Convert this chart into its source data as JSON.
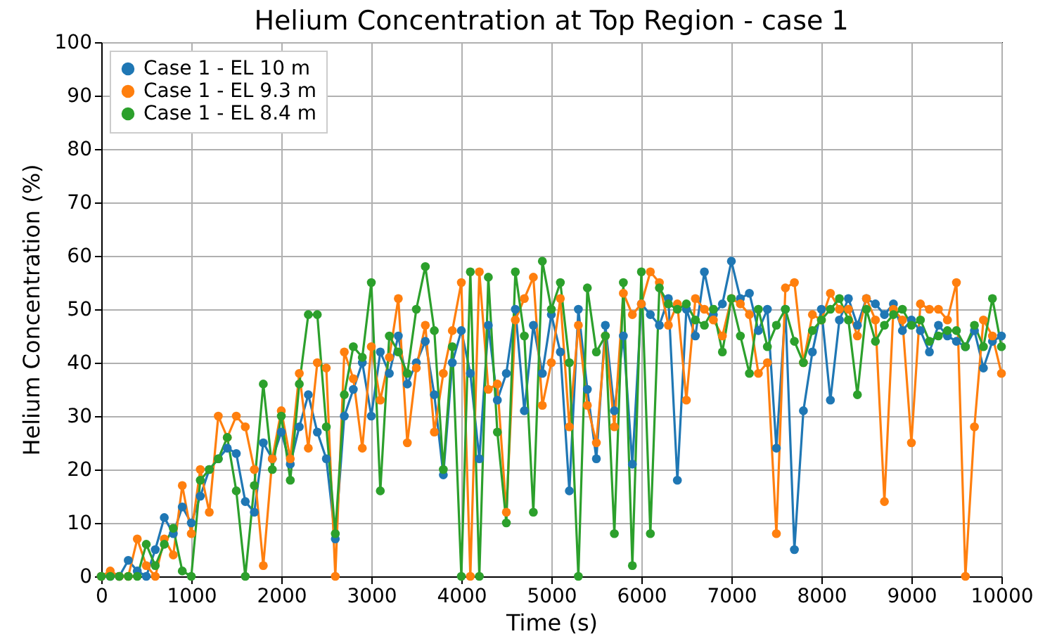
{
  "chart_data": {
    "type": "line",
    "title": "Helium Concentration at Top Region - case 1",
    "xlabel": "Time (s)",
    "ylabel": "Helium Concentration (%)",
    "x": [
      0,
      100,
      200,
      300,
      400,
      500,
      600,
      700,
      800,
      900,
      1000,
      1100,
      1200,
      1300,
      1400,
      1500,
      1600,
      1700,
      1800,
      1900,
      2000,
      2100,
      2200,
      2300,
      2400,
      2500,
      2600,
      2700,
      2800,
      2900,
      3000,
      3100,
      3200,
      3300,
      3400,
      3500,
      3600,
      3700,
      3800,
      3900,
      4000,
      4100,
      4200,
      4300,
      4400,
      4500,
      4600,
      4700,
      4800,
      4900,
      5000,
      5100,
      5200,
      5300,
      5400,
      5500,
      5600,
      5700,
      5800,
      5900,
      6000,
      6100,
      6200,
      6300,
      6400,
      6500,
      6600,
      6700,
      6800,
      6900,
      7000,
      7100,
      7200,
      7300,
      7400,
      7500,
      7600,
      7700,
      7800,
      7900,
      8000,
      8100,
      8200,
      8300,
      8400,
      8500,
      8600,
      8700,
      8800,
      8900,
      9000,
      9100,
      9200,
      9300,
      9400,
      9500,
      9600,
      9700,
      9800,
      9900,
      10000
    ],
    "series": [
      {
        "name": "Case 1 - EL 10 m",
        "color": "#1f77b4",
        "values": [
          0,
          0,
          0,
          3,
          1,
          0,
          5,
          11,
          8,
          13,
          10,
          15,
          20,
          22,
          24,
          23,
          14,
          12,
          25,
          22,
          27,
          21,
          28,
          34,
          27,
          22,
          7,
          30,
          35,
          40,
          30,
          42,
          38,
          45,
          36,
          40,
          44,
          34,
          19,
          40,
          46,
          38,
          22,
          47,
          33,
          38,
          50,
          31,
          47,
          38,
          49,
          42,
          16,
          50,
          35,
          22,
          47,
          31,
          45,
          21,
          51,
          49,
          47,
          52,
          18,
          50,
          45,
          57,
          49,
          51,
          59,
          52,
          53,
          46,
          50,
          24,
          50,
          5,
          31,
          42,
          50,
          33,
          48,
          52,
          47,
          52,
          51,
          49,
          51,
          46,
          48,
          46,
          42,
          47,
          45,
          44,
          43,
          46,
          39,
          44,
          45
        ]
      },
      {
        "name": "Case 1 - EL 9.3 m",
        "color": "#ff7f0e",
        "values": [
          0,
          1,
          0,
          0,
          7,
          2,
          0,
          7,
          4,
          17,
          8,
          20,
          12,
          30,
          26,
          30,
          28,
          20,
          2,
          22,
          31,
          22,
          38,
          24,
          40,
          39,
          0,
          42,
          37,
          24,
          43,
          33,
          41,
          52,
          25,
          39,
          47,
          27,
          38,
          46,
          55,
          0,
          57,
          35,
          36,
          12,
          48,
          52,
          56,
          32,
          40,
          52,
          28,
          47,
          32,
          25,
          45,
          28,
          53,
          49,
          51,
          57,
          55,
          47,
          51,
          33,
          52,
          50,
          48,
          45,
          52,
          51,
          49,
          38,
          40,
          8,
          54,
          55,
          40,
          49,
          48,
          53,
          50,
          50,
          45,
          52,
          48,
          14,
          50,
          48,
          25,
          51,
          50,
          50,
          48,
          55,
          0,
          28,
          48,
          45,
          38
        ]
      },
      {
        "name": "Case 1 - EL 8.4 m",
        "color": "#2ca02c",
        "values": [
          0,
          0,
          0,
          0,
          0,
          6,
          2,
          6,
          9,
          1,
          0,
          18,
          20,
          22,
          26,
          16,
          0,
          17,
          36,
          20,
          30,
          18,
          36,
          49,
          49,
          28,
          8,
          34,
          43,
          41,
          55,
          16,
          45,
          42,
          38,
          50,
          58,
          46,
          20,
          43,
          0,
          57,
          0,
          56,
          27,
          10,
          57,
          45,
          12,
          59,
          50,
          55,
          40,
          0,
          54,
          42,
          45,
          8,
          55,
          2,
          57,
          8,
          54,
          51,
          50,
          51,
          48,
          47,
          50,
          42,
          52,
          45,
          38,
          50,
          43,
          47,
          50,
          44,
          40,
          46,
          48,
          50,
          52,
          48,
          34,
          50,
          44,
          47,
          49,
          50,
          47,
          48,
          44,
          45,
          46,
          46,
          43,
          47,
          43,
          52,
          43
        ]
      }
    ],
    "xlim": [
      0,
      10000
    ],
    "xticks": [
      0,
      1000,
      2000,
      3000,
      4000,
      5000,
      6000,
      7000,
      8000,
      9000,
      10000
    ],
    "ylim": [
      0,
      100
    ],
    "yticks": [
      0,
      10,
      20,
      30,
      40,
      50,
      60,
      70,
      80,
      90,
      100
    ],
    "grid": true,
    "legend": "top left",
    "marker": "circle",
    "line_style": "solid"
  }
}
